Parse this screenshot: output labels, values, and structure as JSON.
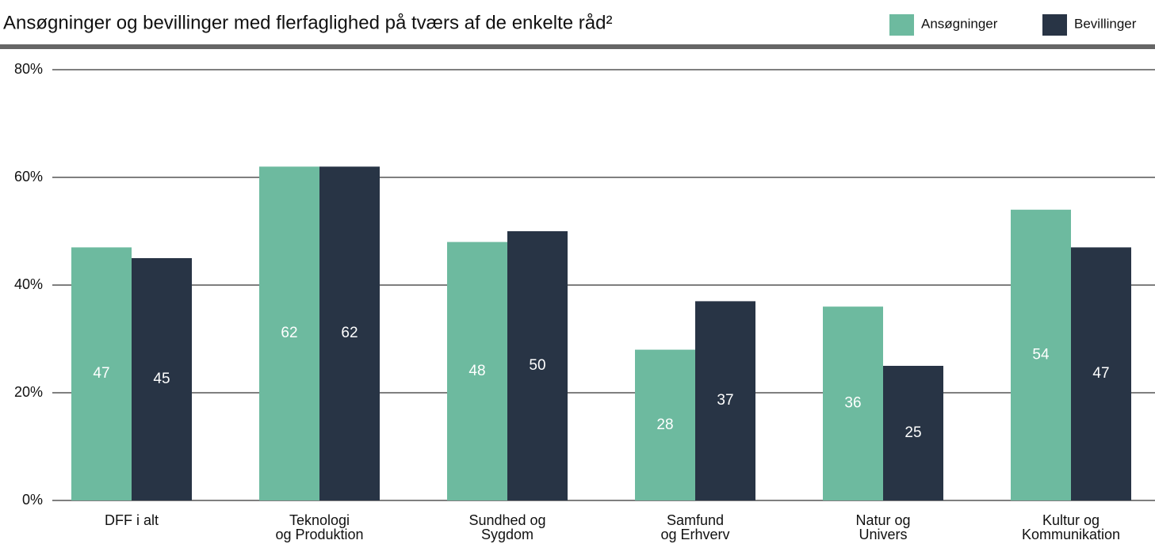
{
  "chart_data": {
    "type": "bar",
    "title": "Ansøgninger og bevillinger med flerfaglighed på tværs af de enkelte råd²",
    "categories": [
      "DFF i alt",
      "Teknologi\nog Produktion",
      "Sundhed og\nSygdom",
      "Samfund\nog Erhverv",
      "Natur og\nUnivers",
      "Kultur og\nKommunikation"
    ],
    "series": [
      {
        "name": "Ansøgninger",
        "color": "#6dba9f",
        "values": [
          47,
          62,
          48,
          28,
          36,
          54
        ]
      },
      {
        "name": "Bevillinger",
        "color": "#283445",
        "values": [
          45,
          62,
          50,
          37,
          25,
          47
        ]
      }
    ],
    "ylim": [
      0,
      80
    ],
    "yticks": [
      {
        "value": 0,
        "label": "0%"
      },
      {
        "value": 20,
        "label": "20%"
      },
      {
        "value": 40,
        "label": "40%"
      },
      {
        "value": 60,
        "label": "60%"
      },
      {
        "value": 80,
        "label": "80%"
      }
    ],
    "grid": true
  }
}
